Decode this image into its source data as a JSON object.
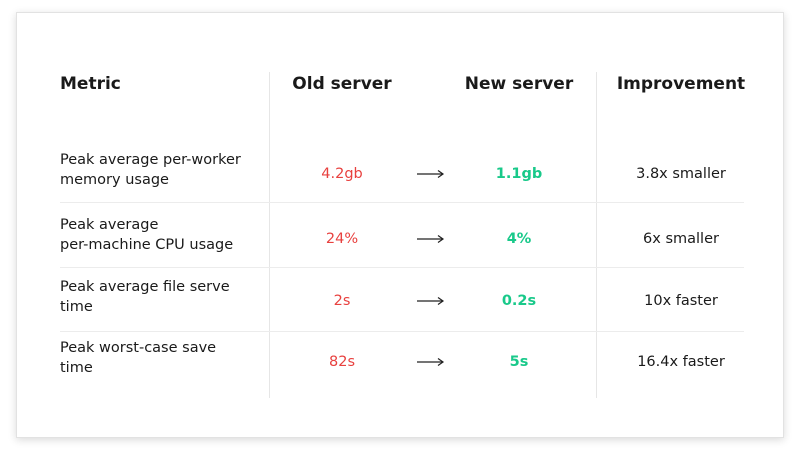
{
  "header": {
    "columns": [
      "Metric",
      "Old server",
      "New server",
      "Improvement"
    ]
  },
  "table": {
    "rows": [
      {
        "metric": [
          "Peak average per-worker",
          "memory usage"
        ],
        "old": "4.2gb",
        "new": "1.1gb",
        "improvement": "3.8x smaller"
      },
      {
        "metric": [
          "Peak average",
          "per-machine CPU usage"
        ],
        "old": "24%",
        "new": "4%",
        "improvement": "6x smaller"
      },
      {
        "metric": [
          "Peak average file serve",
          "time"
        ],
        "old": "2s",
        "new": "0.2s",
        "improvement": "10x faster"
      },
      {
        "metric": [
          "Peak worst-case save",
          "time"
        ],
        "old": "82s",
        "new": "5s",
        "improvement": "16.4x faster"
      }
    ]
  }
}
